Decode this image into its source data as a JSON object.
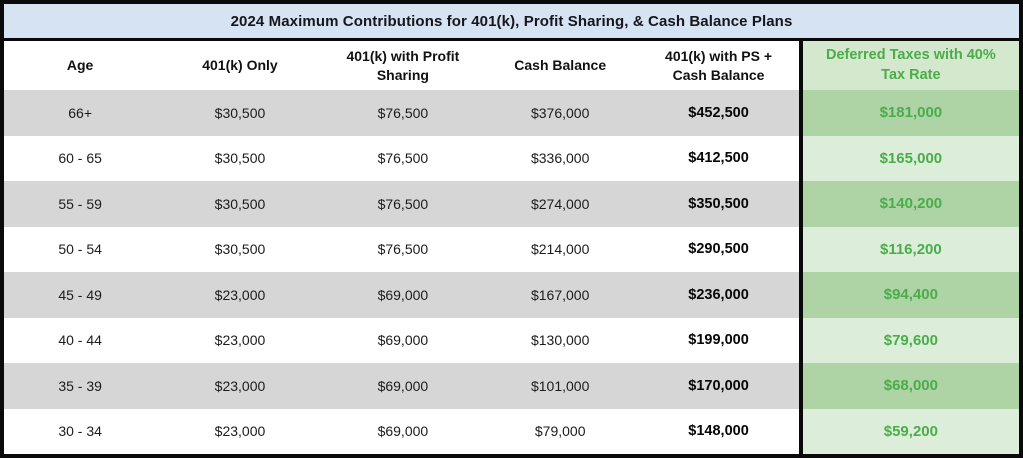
{
  "title": "2024 Maximum Contributions for 401(k), Profit Sharing, & Cash Balance Plans",
  "chart_data": {
    "type": "table",
    "title": "2024 Maximum Contributions for 401(k), Profit Sharing, & Cash Balance Plans",
    "columns": [
      "Age",
      "401(k) Only",
      "401(k) with Profit Sharing",
      "Cash Balance",
      "401(k) with PS + Cash Balance",
      "Deferred Taxes with  40% Tax Rate"
    ],
    "rows": [
      [
        "66+",
        "$30,500",
        "$76,500",
        "$376,000",
        "$452,500",
        "$181,000"
      ],
      [
        "60 - 65",
        "$30,500",
        "$76,500",
        "$336,000",
        "$412,500",
        "$165,000"
      ],
      [
        "55 - 59",
        "$30,500",
        "$76,500",
        "$274,000",
        "$350,500",
        "$140,200"
      ],
      [
        "50 - 54",
        "$30,500",
        "$76,500",
        "$214,000",
        "$290,500",
        "$116,200"
      ],
      [
        "45 - 49",
        "$23,000",
        "$69,000",
        "$167,000",
        "$236,000",
        "$94,400"
      ],
      [
        "40 - 44",
        "$23,000",
        "$69,000",
        "$130,000",
        "$199,000",
        "$79,600"
      ],
      [
        "35 - 39",
        "$23,000",
        "$69,000",
        "$101,000",
        "$170,000",
        "$68,000"
      ],
      [
        "30 - 34",
        "$23,000",
        "$69,000",
        "$79,000",
        "$148,000",
        "$59,200"
      ]
    ],
    "layout": {
      "highlight_column_index": 5,
      "bold_column_indexes": [
        4,
        5
      ],
      "striped_rows": true,
      "column_widths_pct": [
        15.0,
        16.5,
        15.6,
        15.4,
        16.0,
        21.5
      ]
    },
    "colors": {
      "title_bg": "#d6e3f2",
      "title_text": "#16161f",
      "row_stripe_gray": "#d6d6d6",
      "row_white": "#ffffff",
      "highlight_header_bg": "#d4e8cd",
      "highlight_stripe_dark": "#aed3a4",
      "highlight_stripe_light": "#dceeda",
      "highlight_text": "#4aad4a",
      "border": "#0a0a0a"
    }
  }
}
